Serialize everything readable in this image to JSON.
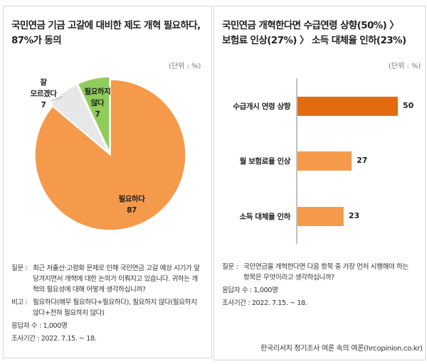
{
  "chart_data": [
    {
      "type": "pie",
      "title": "국민연금 기금 고갈에 대비한 제도 개혁 필요하다, 87%가 동의",
      "title_lines": [
        "국민연금 기금 고갈에 대비한 제도 개혁 필요하다,",
        "87%가 동의"
      ],
      "unit": "(단위 : %)",
      "slices": [
        {
          "label": "필요하다",
          "label_lines": [
            "필요하다"
          ],
          "value": 87,
          "color": "#f5994a"
        },
        {
          "label": "잘 모르겠다",
          "label_lines": [
            "잘",
            "모르겠다"
          ],
          "value": 7,
          "color": "#e6e6e6"
        },
        {
          "label": "필요하지 않다",
          "label_lines": [
            "필요하지",
            "않다"
          ],
          "value": 7,
          "color": "#8fcc5a"
        }
      ]
    },
    {
      "type": "bar",
      "orientation": "horizontal",
      "title": "국민연금 개혁한다면 수급연령 상향(50%) 〉 보험료 인상(27%) 〉 소득 대체율 인하(23%)",
      "title_lines": [
        "국민연금 개혁한다면 수급연령 상향(50%) 〉",
        "보험료 인상(27%) 〉 소득 대체율 인하(23%)"
      ],
      "unit": "(단위 : %)",
      "categories": [
        "수급개시 연령 상향",
        "월 보험료율 인상",
        "소득 대체율 인하"
      ],
      "values": [
        50,
        27,
        23
      ],
      "colors": [
        "#e26b12",
        "#f5994a",
        "#f5994a"
      ],
      "xlim": [
        0,
        50
      ]
    }
  ],
  "left_notes": {
    "q_key": "질문 :",
    "q": "최근 저출산·고령화 문제로 인해 국민연금 고갈 예상 시기가 앞당겨지면서 개혁에 대한 논의가 이뤄지고 있습니다. 귀하는 개혁의 필요성에 대해 어떻게 생각하십니까?",
    "b_key": "비고 :",
    "b": "필요하다(매우 필요하다+필요하다), 필요하지 않다(필요하지 않다+전혀 필요하지 않다)",
    "n": "응답자 수 : 1,000명",
    "period": "조사기간 : 2022. 7.15. ~ 18."
  },
  "right_notes": {
    "q_key": "질문 :",
    "q": "국민연금을 개혁한다면 다음 항목 중 가장 먼저 시행해야 하는 항목은 무엇이라고 생각하십니까?",
    "n": "응답자 수 : 1,000명",
    "period": "조사기간 : 2022. 7.15. ~ 18."
  },
  "source": "한국리서치 정기조사 여론 속의 여론(hrcopinion.co.kr)"
}
